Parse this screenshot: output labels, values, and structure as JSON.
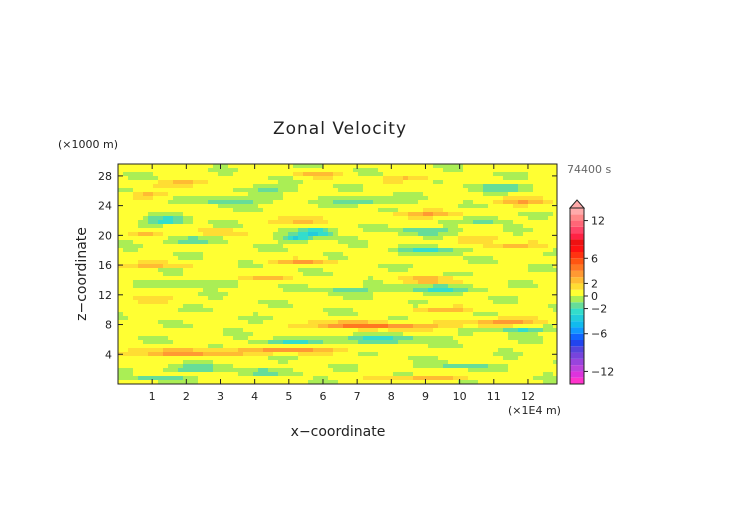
{
  "chart_data": {
    "type": "heatmap",
    "title": "Zonal Velocity",
    "xlabel": "x−coordinate",
    "ylabel": "z−coordinate",
    "x_unit": "(×1E4 m)",
    "y_unit": "(×1000 m)",
    "time_label": "74400 s",
    "xlim": [
      0,
      12.85
    ],
    "ylim": [
      0,
      29.6
    ],
    "x_ticks": [
      1,
      2,
      3,
      4,
      5,
      6,
      7,
      8,
      9,
      10,
      11,
      12
    ],
    "y_ticks": [
      4,
      8,
      12,
      16,
      20,
      24,
      28
    ],
    "colorbar": {
      "levels": [
        -14,
        -13,
        -12,
        -11,
        -10,
        -9,
        -8,
        -7,
        -6,
        -5,
        -4,
        -3,
        -2,
        -1,
        0,
        1,
        2,
        3,
        4,
        5,
        6,
        7,
        8,
        9,
        10,
        11,
        12,
        13,
        14
      ],
      "tick_values": [
        12,
        6,
        2,
        0,
        -2,
        -6,
        -12
      ],
      "tick_labels": [
        "12",
        "6",
        "2",
        "0",
        "−2",
        "−6",
        "−12"
      ],
      "colors": [
        "#ff33cc",
        "#dd33dd",
        "#bb44dd",
        "#9944dd",
        "#7744dd",
        "#5544dd",
        "#2244ee",
        "#1166ff",
        "#1199ff",
        "#11bbee",
        "#22ccdd",
        "#33ddcc",
        "#66dd99",
        "#aaee55",
        "#ffff33",
        "#ffdd33",
        "#ffbb33",
        "#ff9933",
        "#ff7722",
        "#ff5511",
        "#ff3311",
        "#ff1111",
        "#ee1111",
        "#ff2244",
        "#ff4466",
        "#ff6677",
        "#ff8888",
        "#ffaaaa"
      ],
      "extend": "max"
    },
    "features": [
      {
        "x": 2.0,
        "z": 4.2,
        "amp": 3.2,
        "sx": 2.2,
        "sz": 0.45
      },
      {
        "x": 5.2,
        "z": 4.6,
        "amp": 2.8,
        "sx": 1.6,
        "sz": 0.4
      },
      {
        "x": 8.0,
        "z": 7.8,
        "amp": 3.2,
        "sx": 1.8,
        "sz": 0.45
      },
      {
        "x": 6.5,
        "z": 8.0,
        "amp": 2.6,
        "sx": 1.2,
        "sz": 0.4
      },
      {
        "x": 11.5,
        "z": 8.4,
        "amp": 3.0,
        "sx": 1.2,
        "sz": 0.5
      },
      {
        "x": 9.5,
        "z": 10.0,
        "amp": 2.6,
        "sx": 0.9,
        "sz": 0.4
      },
      {
        "x": 7.5,
        "z": 6.0,
        "amp": -2.6,
        "sx": 1.5,
        "sz": 0.5
      },
      {
        "x": 11.8,
        "z": 7.3,
        "amp": -2.6,
        "sx": 0.7,
        "sz": 0.4
      },
      {
        "x": 5.0,
        "z": 5.6,
        "amp": -2.0,
        "sx": 1.0,
        "sz": 0.4
      },
      {
        "x": 2.2,
        "z": 2.1,
        "amp": -2.2,
        "sx": 1.0,
        "sz": 0.4
      },
      {
        "x": 1.0,
        "z": 0.7,
        "amp": -2.0,
        "sx": 1.0,
        "sz": 0.35
      },
      {
        "x": 4.5,
        "z": 1.6,
        "amp": -1.8,
        "sx": 1.0,
        "sz": 0.35
      },
      {
        "x": 9.0,
        "z": 0.8,
        "amp": 2.4,
        "sx": 1.2,
        "sz": 0.35
      },
      {
        "x": 10.0,
        "z": 2.4,
        "amp": -1.6,
        "sx": 1.0,
        "sz": 0.35
      },
      {
        "x": 9.5,
        "z": 12.8,
        "amp": -2.4,
        "sx": 1.2,
        "sz": 0.45
      },
      {
        "x": 9.2,
        "z": 14.0,
        "amp": 2.6,
        "sx": 1.0,
        "sz": 0.4
      },
      {
        "x": 6.8,
        "z": 12.6,
        "amp": -2.0,
        "sx": 0.8,
        "sz": 0.4
      },
      {
        "x": 5.5,
        "z": 16.4,
        "amp": 2.6,
        "sx": 1.0,
        "sz": 0.4
      },
      {
        "x": 2.2,
        "z": 13.4,
        "amp": -1.8,
        "sx": 1.0,
        "sz": 0.4
      },
      {
        "x": 4.2,
        "z": 14.2,
        "amp": 2.2,
        "sx": 0.8,
        "sz": 0.4
      },
      {
        "x": 1.0,
        "z": 16.0,
        "amp": 2.4,
        "sx": 1.0,
        "sz": 0.4
      },
      {
        "x": 0.8,
        "z": 11.3,
        "amp": 2.4,
        "sx": 0.6,
        "sz": 0.4
      },
      {
        "x": 11.5,
        "z": 18.6,
        "amp": 2.6,
        "sx": 0.8,
        "sz": 0.4
      },
      {
        "x": 9.2,
        "z": 18.0,
        "amp": -2.4,
        "sx": 1.0,
        "sz": 0.45
      },
      {
        "x": 10.5,
        "z": 19.4,
        "amp": 2.2,
        "sx": 0.7,
        "sz": 0.4
      },
      {
        "x": 5.8,
        "z": 20.4,
        "amp": -4.0,
        "sx": 0.5,
        "sz": 0.55
      },
      {
        "x": 5.2,
        "z": 19.6,
        "amp": -3.2,
        "sx": 0.4,
        "sz": 0.5
      },
      {
        "x": 5.5,
        "z": 22.0,
        "amp": 2.8,
        "sx": 0.7,
        "sz": 0.5
      },
      {
        "x": 1.4,
        "z": 22.0,
        "amp": -3.0,
        "sx": 0.6,
        "sz": 0.5
      },
      {
        "x": 0.8,
        "z": 20.2,
        "amp": 2.4,
        "sx": 0.5,
        "sz": 0.4
      },
      {
        "x": 3.0,
        "z": 20.4,
        "amp": 2.2,
        "sx": 0.6,
        "sz": 0.4
      },
      {
        "x": 2.0,
        "z": 19.3,
        "amp": -2.4,
        "sx": 0.7,
        "sz": 0.4
      },
      {
        "x": 9.0,
        "z": 22.8,
        "amp": 2.8,
        "sx": 1.0,
        "sz": 0.45
      },
      {
        "x": 9.0,
        "z": 20.6,
        "amp": -2.4,
        "sx": 0.9,
        "sz": 0.45
      },
      {
        "x": 10.8,
        "z": 22.0,
        "amp": -2.2,
        "sx": 0.6,
        "sz": 0.4
      },
      {
        "x": 12.0,
        "z": 24.6,
        "amp": 2.6,
        "sx": 0.9,
        "sz": 0.5
      },
      {
        "x": 11.3,
        "z": 26.4,
        "amp": -2.4,
        "sx": 0.9,
        "sz": 0.45
      },
      {
        "x": 7.2,
        "z": 24.6,
        "amp": -2.0,
        "sx": 1.0,
        "sz": 0.45
      },
      {
        "x": 3.3,
        "z": 24.6,
        "amp": -2.2,
        "sx": 0.9,
        "sz": 0.45
      },
      {
        "x": 2.0,
        "z": 27.0,
        "amp": 2.6,
        "sx": 0.8,
        "sz": 0.4
      },
      {
        "x": 0.8,
        "z": 25.4,
        "amp": 2.2,
        "sx": 0.6,
        "sz": 0.4
      },
      {
        "x": 5.8,
        "z": 28.2,
        "amp": 2.2,
        "sx": 0.8,
        "sz": 0.4
      },
      {
        "x": 8.5,
        "z": 27.6,
        "amp": 2.0,
        "sx": 0.8,
        "sz": 0.4
      },
      {
        "x": 4.5,
        "z": 26.3,
        "amp": -1.6,
        "sx": 0.9,
        "sz": 0.4
      }
    ]
  }
}
